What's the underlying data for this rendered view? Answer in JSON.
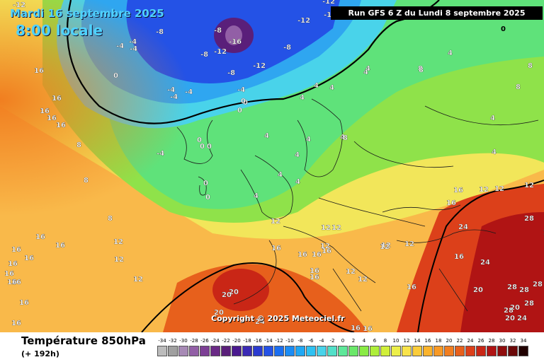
{
  "header": {
    "date": "Mardi 16 septembre 2025",
    "time": "8:00 locale",
    "run": "Run GFS 6 Z du Lundi 8 septembre 2025",
    "copyright": "Copyright © 2025 Meteociel.fr"
  },
  "footer": {
    "parameter": "Température 850hPa",
    "lead": "(+ 192h)"
  },
  "scale": {
    "ticks": [
      "-34",
      "-32",
      "-30",
      "-28",
      "-26",
      "-24",
      "-22",
      "-20",
      "-18",
      "-16",
      "-14",
      "-12",
      "-10",
      "-8",
      "-6",
      "-4",
      "-2",
      "0",
      "2",
      "4",
      "6",
      "8",
      "10",
      "12",
      "14",
      "16",
      "18",
      "20",
      "22",
      "24",
      "26",
      "28",
      "30",
      "32",
      "34"
    ],
    "colors": [
      "#bcbcbc",
      "#a0a0a0",
      "#a78ab5",
      "#925fa6",
      "#7d3f95",
      "#6a2a86",
      "#5a1f7a",
      "#4a1a8f",
      "#3a2ab5",
      "#2b3bd0",
      "#2452e6",
      "#1a6ef0",
      "#1b8cf5",
      "#20a8f5",
      "#2fc1f2",
      "#49d3ea",
      "#52e0c9",
      "#5ee89a",
      "#6be86a",
      "#8aeb45",
      "#aeee3a",
      "#d0ef3a",
      "#ecef4a",
      "#f9e34a",
      "#fbcc3a",
      "#fbb32c",
      "#f89a26",
      "#f17e20",
      "#e7601c",
      "#dc401a",
      "#c92616",
      "#b01414",
      "#8f0c0c",
      "#6b0808",
      "#200000"
    ]
  },
  "map_labels": [
    {
      "t": "-12",
      "c": "#fff"
    },
    {
      "t": "-12",
      "c": "#fff"
    },
    {
      "t": "-12",
      "c": "#fff"
    },
    {
      "t": "-12",
      "c": "#fff"
    },
    {
      "t": "-8",
      "c": "#fff"
    },
    {
      "t": "-8",
      "c": "#fff"
    },
    {
      "t": "-16",
      "c": "#fff"
    },
    {
      "t": "-8",
      "c": "#fff"
    },
    {
      "t": "-12",
      "c": "#fff"
    },
    {
      "t": "-8",
      "c": "#fff"
    },
    {
      "t": "-12",
      "c": "#fff"
    },
    {
      "t": "-4",
      "c": "#fff"
    },
    {
      "t": "-4",
      "c": "#fff"
    },
    {
      "t": "-4",
      "c": "#fff"
    },
    {
      "t": "-8",
      "c": "#fff"
    },
    {
      "t": "-4",
      "c": "#fff"
    },
    {
      "t": "-4",
      "c": "#fff"
    },
    {
      "t": "-4",
      "c": "#fff"
    },
    {
      "t": "0",
      "c": "#fff"
    },
    {
      "t": "0",
      "c": "#fff"
    },
    {
      "t": "-4",
      "c": "#fff"
    },
    {
      "t": "4",
      "c": "#fff"
    },
    {
      "t": "4",
      "c": "#fff"
    },
    {
      "t": "4",
      "c": "#fff"
    },
    {
      "t": "0",
      "c": "#fff"
    },
    {
      "t": "0",
      "c": "#fff"
    },
    {
      "t": "0",
      "c": "#fff"
    },
    {
      "t": "0",
      "c": "#fff"
    },
    {
      "t": "0",
      "c": "#fff"
    },
    {
      "t": "-4",
      "c": "#fff"
    },
    {
      "t": "0",
      "c": "#fff"
    },
    {
      "t": "0",
      "c": "#fff"
    },
    {
      "t": "4",
      "c": "#fff"
    },
    {
      "t": "4",
      "c": "#fff"
    },
    {
      "t": "4",
      "c": "#fff"
    },
    {
      "t": "4",
      "c": "#fff"
    },
    {
      "t": "4",
      "c": "#fff"
    },
    {
      "t": "4",
      "c": "#fff"
    },
    {
      "t": "4",
      "c": "#fff"
    },
    {
      "t": "8",
      "c": "#fff"
    },
    {
      "t": "8",
      "c": "#fff"
    },
    {
      "t": "8",
      "c": "#fff"
    },
    {
      "t": "4",
      "c": "#fff"
    },
    {
      "t": "4",
      "c": "#fff"
    },
    {
      "t": "4",
      "c": "#fff"
    },
    {
      "t": "4",
      "c": "#fff"
    },
    {
      "t": "8",
      "c": "#fff"
    },
    {
      "t": "4",
      "c": "#fff"
    },
    {
      "t": "8",
      "c": "#fff"
    },
    {
      "t": "0",
      "c": "#000"
    },
    {
      "t": "12",
      "c": "#fff"
    },
    {
      "t": "12",
      "c": "#fff"
    },
    {
      "t": "12",
      "c": "#fff"
    },
    {
      "t": "12",
      "c": "#fff"
    },
    {
      "t": "12",
      "c": "#fff"
    },
    {
      "t": "8",
      "c": "#fff"
    },
    {
      "t": "12",
      "c": "#fff"
    },
    {
      "t": "8",
      "c": "#fff"
    },
    {
      "t": "8",
      "c": "#fff"
    },
    {
      "t": "12",
      "c": "#fff"
    },
    {
      "t": "12",
      "c": "#fff"
    },
    {
      "t": "16",
      "c": "#fff"
    },
    {
      "t": "16",
      "c": "#fff"
    },
    {
      "t": "16",
      "c": "#fff"
    },
    {
      "t": "16",
      "c": "#fff"
    },
    {
      "t": "16",
      "c": "#fff"
    },
    {
      "t": "16",
      "c": "#fff"
    },
    {
      "t": "16",
      "c": "#fff"
    },
    {
      "t": "12",
      "c": "#fff"
    },
    {
      "t": "12",
      "c": "#fff"
    },
    {
      "t": "12",
      "c": "#fff"
    },
    {
      "t": "16",
      "c": "#fff"
    },
    {
      "t": "16",
      "c": "#fff"
    },
    {
      "t": "16",
      "c": "#fff"
    },
    {
      "t": "16",
      "c": "#fff"
    },
    {
      "t": "16",
      "c": "#fff"
    },
    {
      "t": "16",
      "c": "#fff"
    },
    {
      "t": "20",
      "c": "#fff"
    },
    {
      "t": "20",
      "c": "#fff"
    },
    {
      "t": "24",
      "c": "#fff"
    },
    {
      "t": "20",
      "c": "#fff"
    },
    {
      "t": "16",
      "c": "#fff"
    },
    {
      "t": "16",
      "c": "#fff"
    },
    {
      "t": "16",
      "c": "#fff"
    },
    {
      "t": "24",
      "c": "#fff"
    },
    {
      "t": "28",
      "c": "#fff"
    },
    {
      "t": "28",
      "c": "#fff"
    },
    {
      "t": "24",
      "c": "#fff"
    },
    {
      "t": "20",
      "c": "#fff"
    },
    {
      "t": "28",
      "c": "#fff"
    },
    {
      "t": "28",
      "c": "#fff"
    },
    {
      "t": "28",
      "c": "#fff"
    },
    {
      "t": "20",
      "c": "#fff"
    },
    {
      "t": "20",
      "c": "#fff"
    },
    {
      "t": "28",
      "c": "#fff"
    },
    {
      "t": "24",
      "c": "#fff"
    },
    {
      "t": "28",
      "c": "#fff"
    },
    {
      "t": "16",
      "c": "#fff"
    },
    {
      "t": "12",
      "c": "#fff"
    },
    {
      "t": "16",
      "c": "#fff"
    },
    {
      "t": "16",
      "c": "#fff"
    },
    {
      "t": "12",
      "c": "#fff"
    },
    {
      "t": "12",
      "c": "#fff"
    },
    {
      "t": "12",
      "c": "#fff"
    },
    {
      "t": "16",
      "c": "#fff"
    },
    {
      "t": "16",
      "c": "#fff"
    },
    {
      "t": "16",
      "c": "#fff"
    },
    {
      "t": "16",
      "c": "#fff"
    },
    {
      "t": "16",
      "c": "#fff"
    },
    {
      "t": "16",
      "c": "#fff"
    },
    {
      "t": "16",
      "c": "#fff"
    },
    {
      "t": "16",
      "c": "#fff"
    }
  ]
}
